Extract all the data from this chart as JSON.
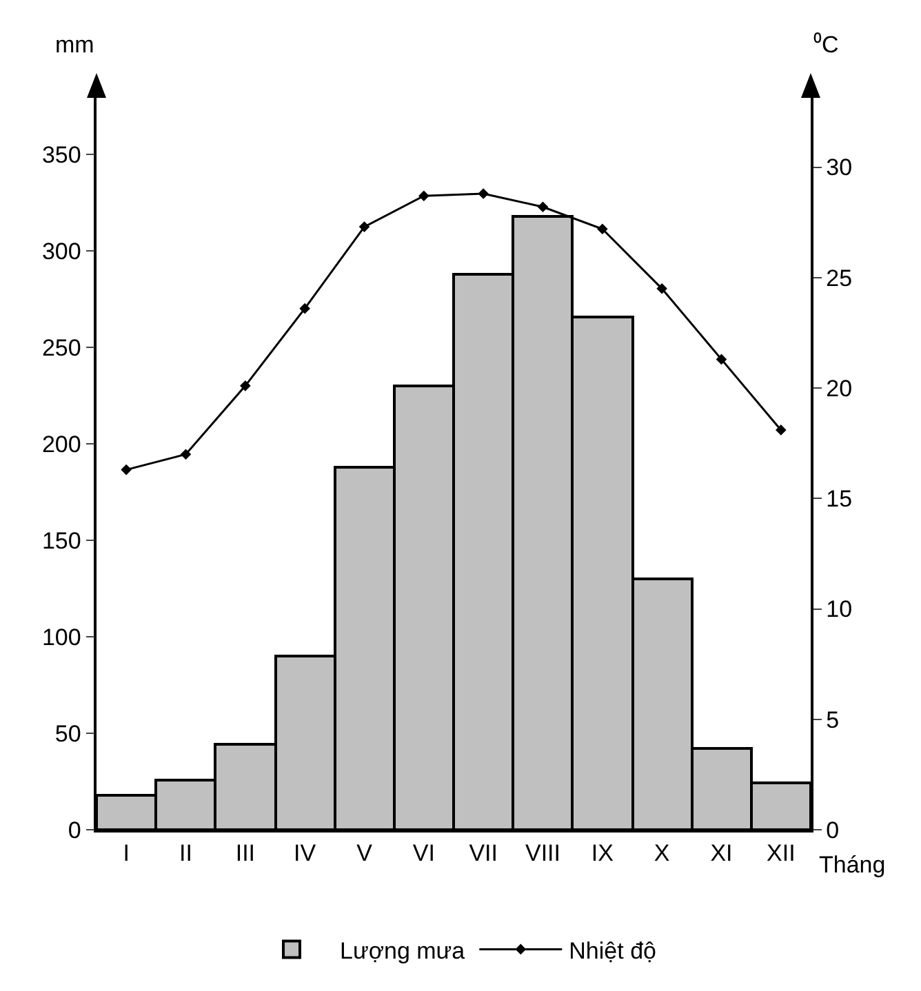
{
  "chart_data": {
    "type": "bar",
    "categories": [
      "I",
      "II",
      "III",
      "IV",
      "V",
      "VI",
      "VII",
      "VIII",
      "IX",
      "X",
      "XI",
      "XII"
    ],
    "xlabel": "Tháng",
    "ylabel": "mm",
    "y2label": "⁰C",
    "series": [
      {
        "name": "Lượng mưa",
        "color": "#c0c0c0",
        "values": [
          18,
          26,
          44,
          90,
          188,
          230,
          288,
          318,
          266,
          130,
          42,
          24
        ]
      },
      {
        "name": "Nhiệt độ",
        "type": "line",
        "axis": "y2",
        "color": "#000000",
        "values": [
          16.3,
          17.0,
          20.1,
          23.6,
          27.3,
          28.7,
          28.8,
          28.2,
          27.2,
          24.5,
          21.3,
          18.1
        ]
      }
    ],
    "ylim": [
      0,
      380
    ],
    "yticks": [
      0,
      50,
      100,
      150,
      200,
      250,
      300,
      350
    ],
    "y2lim": [
      0,
      33.2
    ],
    "y2ticks": [
      0,
      5,
      10,
      15,
      20,
      25,
      30
    ],
    "grid": false,
    "legend": "bottom",
    "marker": "diamond",
    "line_style": "solid"
  }
}
